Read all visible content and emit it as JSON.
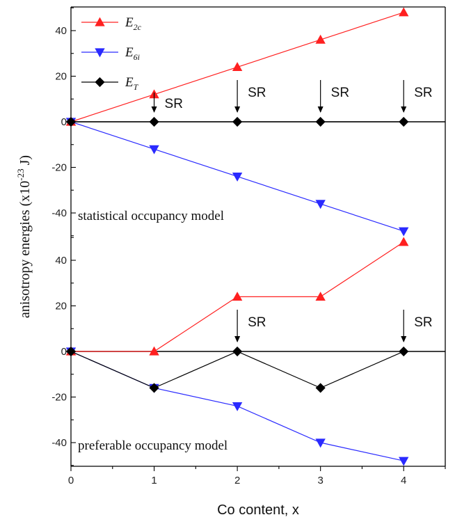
{
  "chart_data": [
    {
      "type": "line",
      "panel": "top",
      "model_label": "statistical occupancy model",
      "x": [
        0,
        1,
        2,
        3,
        4
      ],
      "ylim": [
        -50,
        50
      ],
      "yticks": [
        40,
        20,
        0,
        -20,
        -40
      ],
      "series": [
        {
          "key": "E2c",
          "name": "E",
          "subscript": "2c",
          "color": "#ff2020",
          "marker": "triangle-up",
          "values": [
            0,
            12,
            24,
            36,
            48
          ]
        },
        {
          "key": "E6i",
          "name": "E",
          "subscript": "6i",
          "color": "#2a2aff",
          "marker": "triangle-down",
          "values": [
            0,
            -12,
            -24,
            -36,
            -48
          ]
        },
        {
          "key": "ET",
          "name": "E",
          "subscript": "T",
          "color": "#000000",
          "marker": "diamond",
          "values": [
            0,
            0,
            0,
            0,
            0
          ]
        }
      ],
      "annotations": [
        {
          "x": 1,
          "text": "SR"
        },
        {
          "x": 2,
          "text": "SR"
        },
        {
          "x": 3,
          "text": "SR"
        },
        {
          "x": 4,
          "text": "SR"
        }
      ]
    },
    {
      "type": "line",
      "panel": "bottom",
      "model_label": "preferable occupancy model",
      "x": [
        0,
        1,
        2,
        3,
        4
      ],
      "ylim": [
        -50,
        50
      ],
      "yticks": [
        40,
        20,
        0,
        -20,
        -40
      ],
      "series": [
        {
          "key": "E2c",
          "name": "E",
          "subscript": "2c",
          "color": "#ff2020",
          "marker": "triangle-up",
          "values": [
            0,
            0,
            24,
            24,
            48
          ]
        },
        {
          "key": "E6i",
          "name": "E",
          "subscript": "6i",
          "color": "#2a2aff",
          "marker": "triangle-down",
          "values": [
            0,
            -16,
            -24,
            -40,
            -48
          ]
        },
        {
          "key": "ET",
          "name": "E",
          "subscript": "T",
          "color": "#000000",
          "marker": "diamond",
          "values": [
            0,
            -16,
            0,
            -16,
            0
          ]
        }
      ],
      "annotations": [
        {
          "x": 2,
          "text": "SR"
        },
        {
          "x": 4,
          "text": "SR"
        }
      ]
    }
  ],
  "xaxis": {
    "label": "Co content, x",
    "ticks": [
      0,
      1,
      2,
      3,
      4
    ],
    "xlim": [
      0,
      4.5
    ]
  },
  "yaxis": {
    "label_main": "anisotropy energies (x10",
    "label_exp": "-23",
    "label_unit": " J)"
  },
  "legend": {
    "placement": "top-left",
    "entries": [
      "E2c",
      "E6i",
      "ET"
    ]
  }
}
